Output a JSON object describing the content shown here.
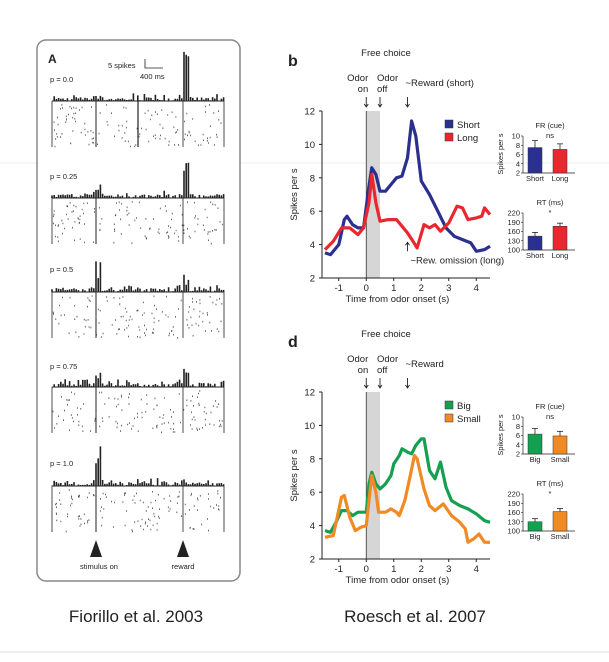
{
  "left_panel": {
    "panel_letter": "A",
    "scale_bar": {
      "spikes": "5 spikes",
      "time": "400 ms"
    },
    "conditions": [
      "p = 0.0",
      "p = 0.25",
      "p = 0.5",
      "p = 0.75",
      "p = 1.0"
    ],
    "event_labels": {
      "stimulus": "stimulus on",
      "reward": "reward"
    },
    "caption": "Fiorillo et al. 2003"
  },
  "right_caption": "Roesch et al. 2007",
  "chart_data": [
    {
      "type": "line",
      "panel_letter": "b",
      "title": "Free choice",
      "xlabel": "Time from odor onset (s)",
      "ylabel": "Spikes per s",
      "xlim": [
        -1.5,
        4.5
      ],
      "ylim": [
        2,
        12
      ],
      "xticks": [
        "-1",
        "0",
        "1",
        "2",
        "3",
        "4"
      ],
      "yticks": [
        "2",
        "4",
        "6",
        "8",
        "10",
        "12"
      ],
      "shaded_region": [
        0,
        0.5
      ],
      "annotations": [
        {
          "text": [
            "Odor",
            "on"
          ],
          "x": 0
        },
        {
          "text": [
            "Odor",
            "off"
          ],
          "x": 0.5
        },
        {
          "text": [
            "~Reward (short)"
          ],
          "x": 1.5
        },
        {
          "text": [
            "~Rew. omission (long)"
          ],
          "x": 1.5,
          "below": true
        }
      ],
      "legend_placement": "top-right",
      "series": [
        {
          "name": "Short",
          "color": "#2b2f8f",
          "x": [
            -1.5,
            -1.3,
            -1.0,
            -0.8,
            -0.7,
            -0.5,
            -0.3,
            -0.1,
            0.1,
            0.2,
            0.35,
            0.5,
            0.7,
            0.9,
            1.1,
            1.3,
            1.5,
            1.65,
            1.8,
            2.0,
            2.3,
            2.6,
            2.9,
            3.2,
            3.5,
            3.8,
            4.0,
            4.3,
            4.5
          ],
          "y": [
            3.5,
            3.4,
            4.0,
            5.5,
            5.7,
            5.2,
            5.0,
            5.0,
            7.5,
            8.6,
            8.2,
            7.2,
            7.2,
            7.6,
            8.0,
            8.1,
            9.2,
            11.4,
            10.5,
            7.8,
            7.0,
            6.0,
            5.0,
            4.5,
            4.3,
            4.1,
            3.6,
            3.7,
            3.9
          ]
        },
        {
          "name": "Long",
          "color": "#e8282e",
          "x": [
            -1.5,
            -1.2,
            -0.9,
            -0.6,
            -0.3,
            -0.1,
            0.1,
            0.2,
            0.35,
            0.5,
            0.8,
            1.1,
            1.3,
            1.5,
            1.7,
            1.85,
            2.1,
            2.3,
            2.5,
            2.7,
            3.0,
            3.3,
            3.5,
            3.7,
            4.0,
            4.2,
            4.3,
            4.5
          ],
          "y": [
            3.7,
            4.2,
            5.0,
            5.0,
            4.6,
            5.0,
            6.5,
            8.2,
            6.5,
            5.4,
            5.5,
            5.5,
            5.1,
            4.7,
            4.2,
            3.8,
            5.2,
            5.0,
            5.2,
            4.8,
            5.3,
            6.3,
            6.2,
            5.5,
            5.6,
            5.7,
            6.2,
            5.8
          ]
        }
      ],
      "insets": [
        {
          "title": "FR (cue)",
          "sig": "ns",
          "ylabel": "Spikes per s",
          "ylim": [
            2,
            10
          ],
          "yticks": [
            "2",
            "4",
            "6",
            "8",
            "10"
          ],
          "categories": [
            "Short",
            "Long"
          ],
          "values": [
            7.5,
            7.1
          ],
          "errors": [
            1.5,
            1.2
          ]
        },
        {
          "title": "RT (ms)",
          "sig": "*",
          "ylim": [
            100,
            220
          ],
          "yticks": [
            "100",
            "130",
            "160",
            "190",
            "220"
          ],
          "categories": [
            "Short",
            "Long"
          ],
          "values": [
            145,
            177
          ],
          "errors": [
            12,
            10
          ]
        }
      ]
    },
    {
      "type": "line",
      "panel_letter": "d",
      "title": "Free choice",
      "xlabel": "Time from odor onset (s)",
      "ylabel": "Spikes per s",
      "xlim": [
        -1.5,
        4.5
      ],
      "ylim": [
        2,
        12
      ],
      "xticks": [
        "-1",
        "0",
        "1",
        "2",
        "3",
        "4"
      ],
      "yticks": [
        "2",
        "4",
        "6",
        "8",
        "10",
        "12"
      ],
      "shaded_region": [
        0,
        0.5
      ],
      "annotations": [
        {
          "text": [
            "Odor",
            "on"
          ],
          "x": 0
        },
        {
          "text": [
            "Odor",
            "off"
          ],
          "x": 0.5
        },
        {
          "text": [
            "~Reward"
          ],
          "x": 1.5
        }
      ],
      "legend_placement": "top-right",
      "series": [
        {
          "name": "Big",
          "color": "#14a050",
          "x": [
            -1.5,
            -1.3,
            -1.1,
            -0.9,
            -0.7,
            -0.5,
            -0.3,
            0,
            0.1,
            0.2,
            0.35,
            0.5,
            0.7,
            0.9,
            1.0,
            1.2,
            1.3,
            1.5,
            1.65,
            1.8,
            2.0,
            2.1,
            2.3,
            2.5,
            2.7,
            2.9,
            3.1,
            3.4,
            3.7,
            4.0,
            4.3,
            4.5
          ],
          "y": [
            3.7,
            3.6,
            4.2,
            4.9,
            4.9,
            4.6,
            4.8,
            4.8,
            6.5,
            7.2,
            6.5,
            6.2,
            6.5,
            7.0,
            7.7,
            8.2,
            8.6,
            8.4,
            8.3,
            8.8,
            9.2,
            9.2,
            7.3,
            6.8,
            7.8,
            6.3,
            5.5,
            5.2,
            5.0,
            4.7,
            4.3,
            4.2
          ]
        },
        {
          "name": "Small",
          "color": "#f08a24",
          "x": [
            -1.5,
            -1.2,
            -0.9,
            -0.8,
            -0.6,
            -0.4,
            -0.2,
            0,
            0.1,
            0.2,
            0.35,
            0.45,
            0.7,
            0.9,
            1.1,
            1.2,
            1.4,
            1.6,
            1.75,
            1.85,
            2.1,
            2.3,
            2.5,
            2.8,
            3.1,
            3.4,
            3.6,
            3.7,
            3.9,
            4.1,
            4.3,
            4.5
          ],
          "y": [
            3.3,
            3.4,
            5.7,
            5.8,
            4.5,
            3.7,
            3.9,
            4.0,
            5.5,
            7.0,
            6.0,
            4.8,
            4.8,
            5.0,
            4.8,
            4.6,
            5.5,
            7.0,
            8.2,
            8.0,
            6.2,
            5.2,
            4.9,
            5.3,
            4.6,
            4.2,
            3.8,
            3.0,
            3.2,
            3.5,
            3.0,
            3.0
          ]
        }
      ],
      "insets": [
        {
          "title": "FR (cue)",
          "sig": "ns",
          "ylabel": "Spikes per s",
          "ylim": [
            2,
            10
          ],
          "yticks": [
            "2",
            "4",
            "6",
            "8",
            "10"
          ],
          "categories": [
            "Big",
            "Small"
          ],
          "values": [
            6.3,
            5.9
          ],
          "errors": [
            1.2,
            1.0
          ]
        },
        {
          "title": "RT (ms)",
          "sig": "*",
          "ylim": [
            100,
            220
          ],
          "yticks": [
            "100",
            "130",
            "160",
            "190",
            "220"
          ],
          "categories": [
            "Big",
            "Small"
          ],
          "values": [
            130,
            163
          ],
          "errors": [
            10,
            10
          ]
        }
      ]
    }
  ]
}
